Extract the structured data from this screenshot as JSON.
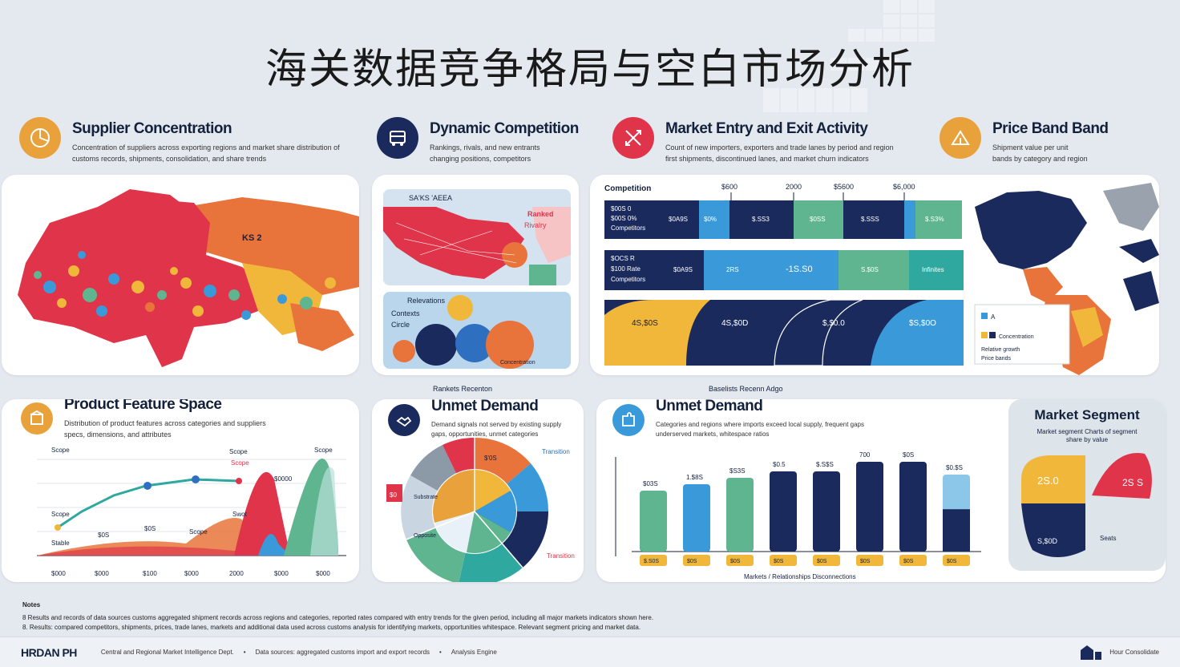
{
  "page": {
    "title": "海关数据竞争格局与空白市场分析"
  },
  "colors": {
    "navy": "#1b2a5c",
    "orange": "#e9a23b",
    "red": "#e0344a",
    "blue": "#3a9ad9",
    "green": "#5fb58f",
    "teal": "#2fa8a0",
    "light_blue": "#8cc7ea"
  },
  "sections": {
    "supplier": {
      "title": "Supplier Concentration",
      "line1": "Concentration of suppliers across exporting regions and market share distribution of",
      "line2": "customs records, shipments, consolidation, and share trends",
      "icon": "pie-icon"
    },
    "dynamic": {
      "title": "Dynamic Competition",
      "line1": "Rankings, rivals, and new entrants",
      "line2": "changing positions, competitors",
      "icon": "bus-icon"
    },
    "entry": {
      "title": "Market Entry and Exit Activity",
      "line1": "Count of new importers, exporters and trade lanes by period and region",
      "line2": "first shipments, discontinued lanes, and market churn indicators",
      "icon": "arrows-icon"
    },
    "price": {
      "title": "Price Band Band",
      "line1": "Shipment value per unit",
      "line2": "bands by category and region",
      "icon": "tent-icon"
    },
    "feature": {
      "title": "Product Feature Space",
      "line1": "Distribution of product features across categories and suppliers",
      "line2": "specs, dimensions, and attributes",
      "icon": "box-icon"
    },
    "unmet1": {
      "title": "Unmet Demand",
      "line1": "Demand signals not served by existing supply",
      "line2": "gaps, opportunities, unmet categories",
      "icon": "handshake-icon",
      "above": "Rankets Recenton"
    },
    "unmet2": {
      "title": "Unmet Demand",
      "line1": "Categories and regions where imports exceed local supply, frequent gaps",
      "line2": "underserved markets, whitespace ratios",
      "icon": "puzzle-icon",
      "above": "Baselists Recenn Adgo"
    },
    "segment": {
      "title": "Market Segment",
      "line1": "Market segment Charts of segment",
      "line2": "share by value"
    }
  },
  "dynamic_panel": {
    "map_label": "SA'KS 'AEEA",
    "map_note1": "Ranked",
    "map_note2": "Rivalry",
    "circles_label1": "Relevations",
    "circles_label2": "Contexts",
    "circles_label3": "Circle",
    "circles_foot": "Concentration"
  },
  "supplier_map": {
    "label": "KS 2"
  },
  "competition": {
    "header": "Competition",
    "ticks": [
      "$600",
      "2000",
      "$5600",
      "$6,000"
    ],
    "row1": {
      "label1": "$00S 0",
      "label2": "$00S 0%",
      "label3": "Competitors",
      "cells": [
        "$0A9S",
        "$0%",
        "$.SS3",
        "$0SS",
        "$.SSS",
        "$.S3%"
      ]
    },
    "row2": {
      "label1": "$OCS R",
      "label2": "$100 Rate",
      "label3": "Competitors",
      "cells": [
        "$0A9S",
        "2RS",
        "-1S.S0",
        "S.$0S",
        "Infinites"
      ]
    },
    "row3": {
      "cells": [
        "4S,$0S",
        "4S,$0D",
        "$,$0.0",
        "$S,$0O"
      ]
    }
  },
  "price_map": {
    "legend1": "A",
    "legend2": "Concentration",
    "legend3": "Relative growth",
    "legend4": "Price bands"
  },
  "feature_chart": {
    "labels": [
      "Scope",
      "Scope",
      "Scope",
      "Scope",
      "$0000",
      "$0S",
      "$0S",
      "Scope",
      "Scope",
      "Stable",
      "Swot"
    ],
    "xticks": [
      "$000",
      "$000",
      "$100",
      "$000",
      "2000",
      "$000",
      "$000"
    ]
  },
  "donut": {
    "labels": [
      "$'0S",
      "Transition",
      "Substrate",
      "Opposite",
      "Transition",
      "$0"
    ]
  },
  "chart_data": {
    "type": "bar",
    "categories": [
      "1",
      "2",
      "3",
      "4",
      "5",
      "6",
      "7",
      "8"
    ],
    "values": [
      38,
      42,
      46,
      50,
      50,
      56,
      56,
      48
    ],
    "top_labels": [
      "$03S",
      "1.$8S",
      "$S3S",
      "$0.5",
      "$.S$S",
      "700",
      "$0S",
      "$0.$S"
    ],
    "bottom_labels": [
      "$.S0S",
      "$0S",
      "$0S",
      "$0S",
      "$0S",
      "$0S",
      "$0S",
      "$0S"
    ],
    "xlabel": "Markets / Relationships Disconnections",
    "ylim": [
      0,
      60
    ]
  },
  "segment_panel": {
    "val1": "2S.0",
    "val2": "2S S",
    "val3": "S,$0D",
    "legend": "Seats"
  },
  "notes": {
    "head": "Notes",
    "line1": "8   Results and records of data sources customs aggregated shipment records across regions and categories, reported rates compared with entry trends for the given period, including all major markets indicators shown here.",
    "line2": "8.  Results: compared competitors, shipments, prices, trade lanes, markets and additional data used across customs analysis for identifying markets, opportunities whitespace. Relevant segment pricing and market data."
  },
  "footer": {
    "brand": "HRDAN PH",
    "item1": "Central and Regional Market Intelligence Dept.",
    "item2": "Data sources: aggregated customs import and export records",
    "item3": "Analysis Engine",
    "right": "Hour Consolidate"
  }
}
